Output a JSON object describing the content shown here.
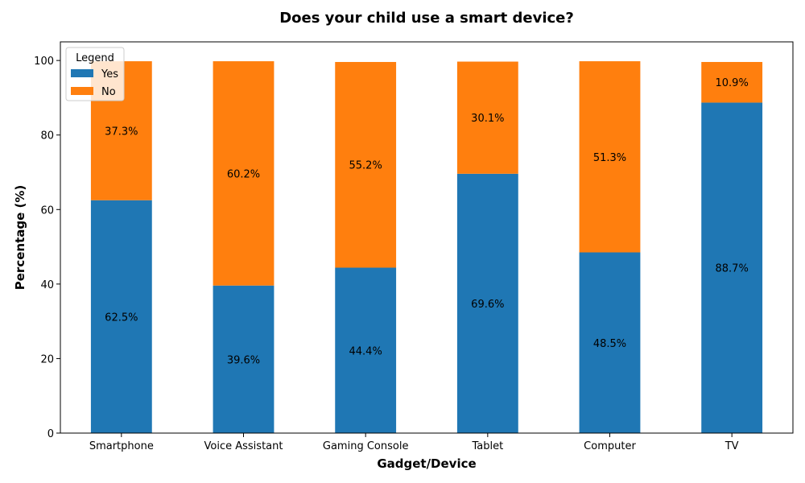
{
  "chart_data": {
    "type": "bar",
    "stacked": true,
    "title": "Does your child use a smart device?",
    "xlabel": "Gadget/Device",
    "ylabel": "Percentage (%)",
    "ylim": [
      0,
      105
    ],
    "yticks": [
      0,
      20,
      40,
      60,
      80,
      100
    ],
    "categories": [
      "Smartphone",
      "Voice Assistant",
      "Gaming Console",
      "Tablet",
      "Computer",
      "TV"
    ],
    "series": [
      {
        "name": "Yes",
        "color": "#1f77b4",
        "values": [
          62.5,
          39.6,
          44.4,
          69.6,
          48.5,
          88.7
        ],
        "labels": [
          "62.5%",
          "39.6%",
          "44.4%",
          "69.6%",
          "48.5%",
          "88.7%"
        ]
      },
      {
        "name": "No",
        "color": "#ff7f0e",
        "values": [
          37.3,
          60.2,
          55.2,
          30.1,
          51.3,
          10.9
        ],
        "labels": [
          "37.3%",
          "60.2%",
          "55.2%",
          "30.1%",
          "51.3%",
          "10.9%"
        ]
      }
    ],
    "legend": {
      "title": "Legend",
      "position": "upper-left"
    },
    "grid": false
  }
}
